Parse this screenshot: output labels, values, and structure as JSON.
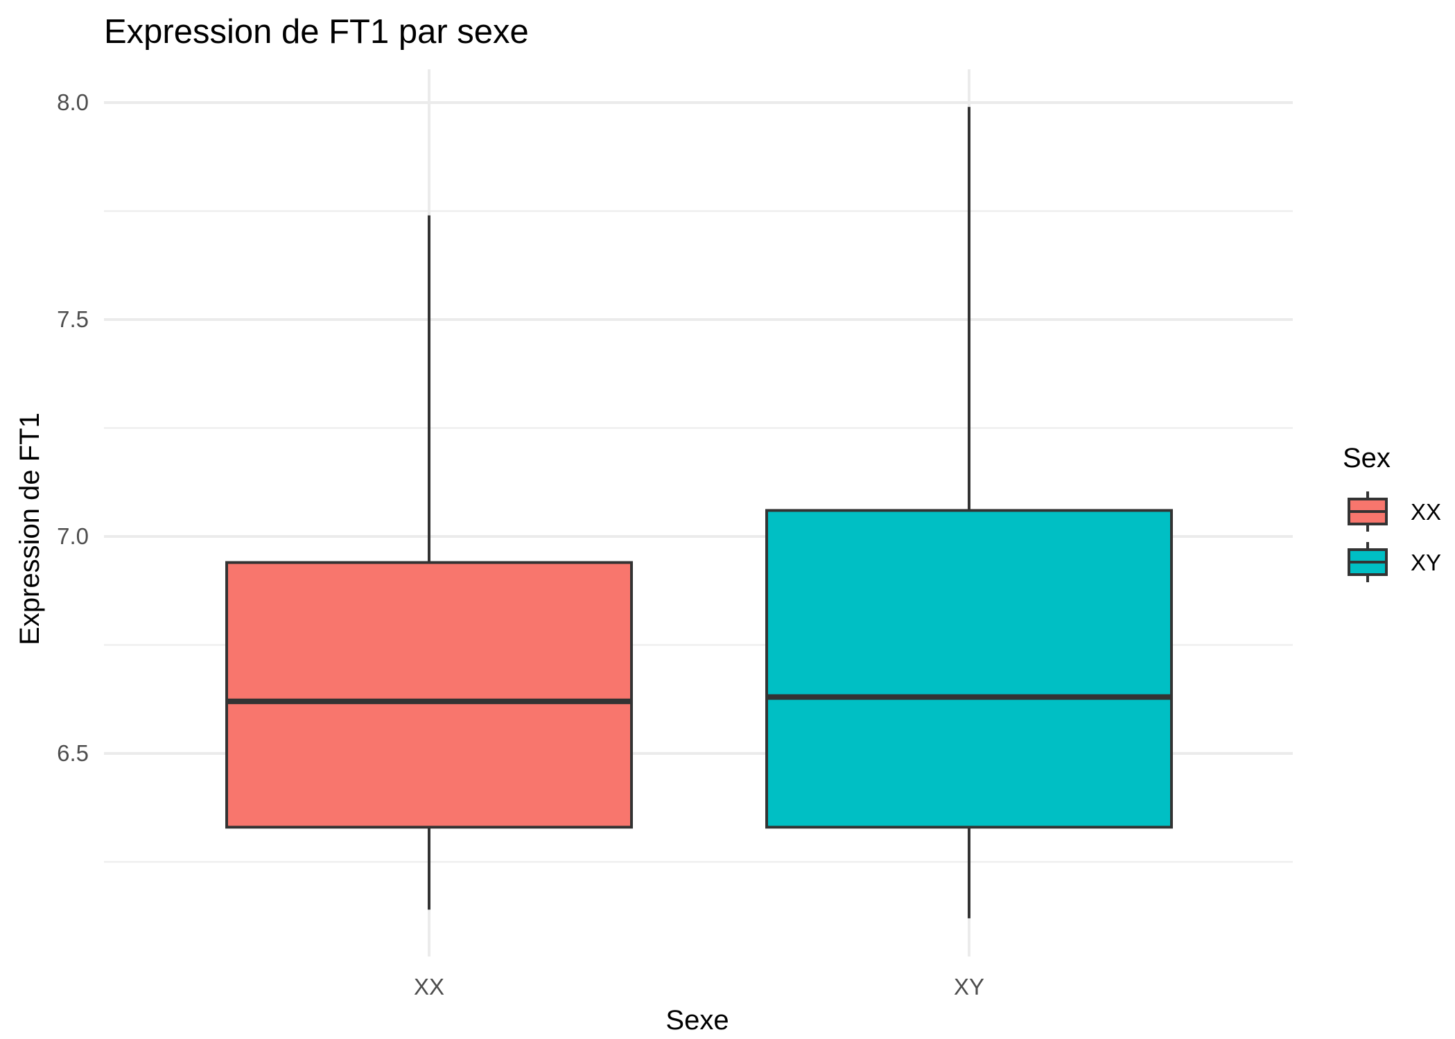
{
  "chart_data": {
    "type": "boxplot",
    "title": "Expression de FT1 par sexe",
    "xlabel": "Sexe",
    "ylabel": "Expression de FT1",
    "categories": [
      "XX",
      "XY"
    ],
    "y_ticks": [
      "6.5",
      "7.0",
      "7.5",
      "8.0"
    ],
    "ylim": [
      6.09,
      8.08
    ],
    "grid": true,
    "boxes": [
      {
        "category": "XX",
        "min": 6.14,
        "q1": 6.33,
        "median": 6.62,
        "q3": 6.94,
        "max": 7.74
      },
      {
        "category": "XY",
        "min": 6.12,
        "q1": 6.33,
        "median": 6.63,
        "q3": 7.06,
        "max": 7.99
      }
    ],
    "legend": {
      "title": "Sex",
      "position": "right",
      "entries": [
        {
          "label": "XX",
          "color": "#F8766D"
        },
        {
          "label": "XY",
          "color": "#00BFC4"
        }
      ]
    },
    "colors": {
      "XX": "#F8766D",
      "XY": "#00BFC4",
      "outline": "#333333"
    }
  }
}
